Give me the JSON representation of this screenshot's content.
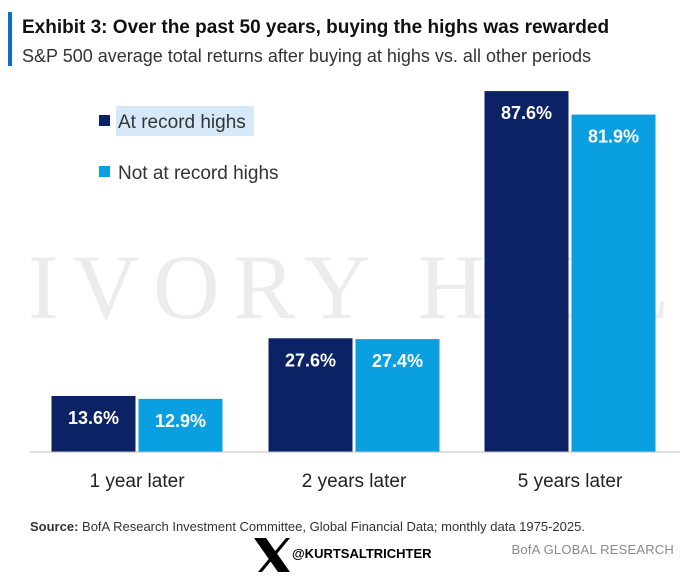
{
  "header": {
    "title": "Exhibit 3: Over the past 50 years, buying the highs was rewarded",
    "subtitle": "S&P 500 average total returns after buying at highs vs. all other periods"
  },
  "watermark": {
    "text": "IVORY HILL"
  },
  "colors": {
    "accent_bar": "#0a6ed1",
    "at_highs": "#0b2265",
    "not_at_highs": "#0a9fe0",
    "legend_highlight": "#d6e9f8",
    "axis": "#bfbfbf"
  },
  "chart_data": {
    "type": "bar",
    "categories": [
      "1 year later",
      "2 years later",
      "5 years later"
    ],
    "series": [
      {
        "name": "At record highs",
        "values": [
          13.6,
          27.6,
          87.6
        ],
        "labels": [
          "13.6%",
          "27.6%",
          "87.6%"
        ],
        "color": "#0b2265"
      },
      {
        "name": "Not at record highs",
        "values": [
          12.9,
          27.4,
          81.9
        ],
        "labels": [
          "12.9%",
          "27.4%",
          "81.9%"
        ],
        "color": "#0a9fe0"
      }
    ],
    "ylim": [
      0,
      100
    ],
    "grid": false,
    "legend_placement": "top-left"
  },
  "footer": {
    "source_label": "Source:",
    "source_text": " BofA Research Investment Committee, Global Financial Data; monthly data 1975-2025.",
    "credit": "BofA GLOBAL RESEARCH",
    "handle": "@KURTSALTRICHTER",
    "x_icon": "x-logo-icon"
  }
}
